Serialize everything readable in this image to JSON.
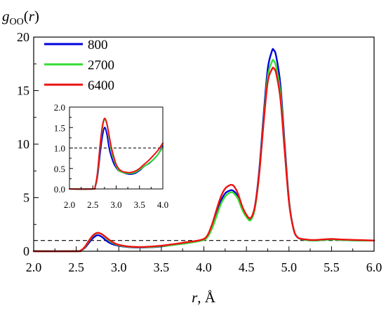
{
  "chart_data": [
    {
      "type": "line",
      "ylabel": "g_OO(r)",
      "xlabel": "r, Å",
      "xlim": [
        2.0,
        6.0
      ],
      "ylim": [
        0,
        20
      ],
      "x_ticks": [
        "2.0",
        "2.5",
        "3.0",
        "3.5",
        "4.0",
        "4.5",
        "5.0",
        "5.5",
        "6.0"
      ],
      "y_ticks": [
        "0",
        "5",
        "10",
        "15",
        "20"
      ],
      "reference_line": {
        "y": 1,
        "style": "dashed"
      },
      "legend": {
        "placement": "top-left"
      },
      "series": [
        {
          "name": "800",
          "color": "#0000dd",
          "x": [
            2.0,
            2.5,
            2.55,
            2.6,
            2.65,
            2.7,
            2.75,
            2.8,
            2.85,
            2.9,
            2.95,
            3.0,
            3.1,
            3.2,
            3.3,
            3.4,
            3.5,
            3.6,
            3.7,
            3.8,
            3.9,
            4.0,
            4.05,
            4.1,
            4.15,
            4.2,
            4.25,
            4.3,
            4.33,
            4.36,
            4.4,
            4.45,
            4.5,
            4.55,
            4.6,
            4.65,
            4.7,
            4.75,
            4.8,
            4.82,
            4.85,
            4.9,
            4.95,
            5.0,
            5.05,
            5.1,
            5.2,
            5.3,
            5.4,
            5.5,
            5.6,
            5.8,
            6.0
          ],
          "values": [
            0,
            0,
            0.05,
            0.3,
            0.8,
            1.25,
            1.5,
            1.35,
            1.0,
            0.75,
            0.6,
            0.5,
            0.4,
            0.35,
            0.35,
            0.38,
            0.45,
            0.55,
            0.65,
            0.75,
            0.9,
            1.1,
            1.5,
            2.4,
            3.6,
            4.7,
            5.4,
            5.65,
            5.7,
            5.55,
            5.1,
            4.0,
            3.3,
            3.0,
            4.2,
            7.5,
            12.5,
            17.0,
            18.7,
            18.8,
            18.2,
            15.5,
            10.0,
            4.8,
            2.2,
            1.3,
            1.05,
            1.0,
            1.05,
            1.1,
            1.05,
            1.0,
            1.0
          ]
        },
        {
          "name": "2700",
          "color": "#33dd33",
          "x": [
            2.0,
            2.5,
            2.55,
            2.6,
            2.65,
            2.7,
            2.75,
            2.8,
            2.85,
            2.9,
            2.95,
            3.0,
            3.1,
            3.2,
            3.3,
            3.4,
            3.5,
            3.6,
            3.7,
            3.8,
            3.9,
            4.0,
            4.05,
            4.1,
            4.15,
            4.2,
            4.25,
            4.3,
            4.33,
            4.36,
            4.4,
            4.45,
            4.5,
            4.55,
            4.6,
            4.65,
            4.7,
            4.75,
            4.8,
            4.82,
            4.85,
            4.9,
            4.95,
            5.0,
            5.05,
            5.1,
            5.2,
            5.3,
            5.4,
            5.5,
            5.6,
            5.8,
            6.0
          ],
          "values": [
            0,
            0,
            0.05,
            0.35,
            0.95,
            1.45,
            1.7,
            1.6,
            1.25,
            0.9,
            0.7,
            0.55,
            0.42,
            0.38,
            0.37,
            0.4,
            0.47,
            0.55,
            0.65,
            0.75,
            0.88,
            1.05,
            1.4,
            2.2,
            3.3,
            4.4,
            5.1,
            5.45,
            5.5,
            5.35,
            4.9,
            3.9,
            3.2,
            2.9,
            4.0,
            7.2,
            12.0,
            16.3,
            17.7,
            17.8,
            17.2,
            14.8,
            9.6,
            4.7,
            2.2,
            1.3,
            1.05,
            1.0,
            1.05,
            1.1,
            1.05,
            1.0,
            1.0
          ]
        },
        {
          "name": "6400",
          "color": "#ee1111",
          "x": [
            2.0,
            2.5,
            2.55,
            2.6,
            2.65,
            2.7,
            2.75,
            2.8,
            2.85,
            2.9,
            2.95,
            3.0,
            3.1,
            3.2,
            3.3,
            3.4,
            3.5,
            3.6,
            3.7,
            3.8,
            3.9,
            4.0,
            4.05,
            4.1,
            4.15,
            4.2,
            4.25,
            4.3,
            4.33,
            4.36,
            4.4,
            4.45,
            4.5,
            4.55,
            4.6,
            4.65,
            4.7,
            4.75,
            4.8,
            4.82,
            4.85,
            4.9,
            4.95,
            5.0,
            5.05,
            5.1,
            5.2,
            5.3,
            5.4,
            5.5,
            5.6,
            5.8,
            6.0
          ],
          "values": [
            0,
            0,
            0.06,
            0.4,
            1.0,
            1.5,
            1.72,
            1.6,
            1.3,
            1.0,
            0.75,
            0.6,
            0.45,
            0.4,
            0.4,
            0.45,
            0.52,
            0.62,
            0.72,
            0.85,
            0.95,
            1.15,
            1.6,
            2.6,
            3.9,
            5.1,
            5.85,
            6.15,
            6.2,
            6.0,
            5.4,
            4.2,
            3.4,
            3.1,
            4.2,
            7.2,
            11.8,
            15.8,
            17.0,
            17.1,
            16.6,
            14.2,
            9.3,
            4.6,
            2.2,
            1.3,
            1.1,
            1.05,
            1.1,
            1.15,
            1.1,
            1.05,
            1.0
          ]
        }
      ]
    },
    {
      "type": "line",
      "xlim": [
        2.0,
        4.0
      ],
      "ylim": [
        0,
        2.0
      ],
      "x_ticks": [
        "2.0",
        "2.5",
        "3.0",
        "3.5",
        "4.0"
      ],
      "y_ticks": [
        "0.0",
        "0.5",
        "1.0",
        "1.5",
        "2.0"
      ],
      "reference_line": {
        "y": 1,
        "style": "dashed"
      },
      "series": [
        {
          "color": "#0000dd",
          "x": [
            2.0,
            2.5,
            2.55,
            2.6,
            2.65,
            2.7,
            2.75,
            2.8,
            2.85,
            2.9,
            2.95,
            3.0,
            3.05,
            3.1,
            3.15,
            3.2,
            3.3,
            3.4,
            3.5,
            3.6,
            3.7,
            3.8,
            3.9,
            4.0
          ],
          "values": [
            0,
            0,
            0.05,
            0.3,
            0.8,
            1.25,
            1.5,
            1.35,
            1.0,
            0.78,
            0.62,
            0.52,
            0.45,
            0.42,
            0.4,
            0.38,
            0.36,
            0.38,
            0.45,
            0.55,
            0.62,
            0.72,
            0.85,
            1.05
          ]
        },
        {
          "color": "#33dd33",
          "x": [
            2.0,
            2.5,
            2.55,
            2.6,
            2.65,
            2.7,
            2.75,
            2.8,
            2.85,
            2.9,
            2.95,
            3.0,
            3.05,
            3.1,
            3.15,
            3.2,
            3.3,
            3.4,
            3.5,
            3.6,
            3.7,
            3.8,
            3.9,
            4.0
          ],
          "values": [
            0,
            0,
            0.05,
            0.35,
            0.95,
            1.45,
            1.7,
            1.6,
            1.25,
            0.92,
            0.72,
            0.56,
            0.46,
            0.42,
            0.4,
            0.39,
            0.38,
            0.4,
            0.47,
            0.55,
            0.63,
            0.72,
            0.85,
            1.02
          ]
        },
        {
          "color": "#ee1111",
          "x": [
            2.0,
            2.5,
            2.55,
            2.6,
            2.65,
            2.7,
            2.75,
            2.8,
            2.85,
            2.9,
            2.95,
            3.0,
            3.05,
            3.1,
            3.15,
            3.2,
            3.3,
            3.4,
            3.5,
            3.6,
            3.7,
            3.8,
            3.9,
            4.0
          ],
          "values": [
            0,
            0,
            0.06,
            0.4,
            1.0,
            1.5,
            1.72,
            1.6,
            1.3,
            1.0,
            0.78,
            0.6,
            0.5,
            0.45,
            0.42,
            0.41,
            0.4,
            0.43,
            0.5,
            0.6,
            0.7,
            0.82,
            0.95,
            1.12
          ]
        }
      ]
    }
  ]
}
